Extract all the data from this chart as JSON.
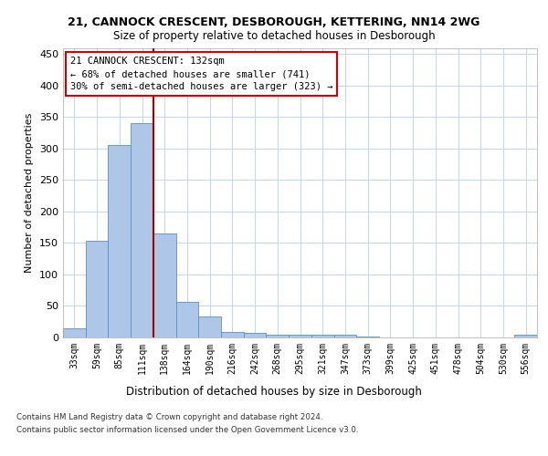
{
  "title1": "21, CANNOCK CRESCENT, DESBOROUGH, KETTERING, NN14 2WG",
  "title2": "Size of property relative to detached houses in Desborough",
  "xlabel": "Distribution of detached houses by size in Desborough",
  "ylabel": "Number of detached properties",
  "categories": [
    "33sqm",
    "59sqm",
    "85sqm",
    "111sqm",
    "138sqm",
    "164sqm",
    "190sqm",
    "216sqm",
    "242sqm",
    "268sqm",
    "295sqm",
    "321sqm",
    "347sqm",
    "373sqm",
    "399sqm",
    "425sqm",
    "451sqm",
    "478sqm",
    "504sqm",
    "530sqm",
    "556sqm"
  ],
  "values": [
    15,
    153,
    305,
    340,
    165,
    57,
    33,
    9,
    7,
    4,
    5,
    5,
    4,
    1,
    0,
    0,
    0,
    0,
    0,
    0,
    4
  ],
  "bar_color": "#aec6e8",
  "bar_edge_color": "#5a8fc2",
  "vline_x": 3.5,
  "vline_color": "#aa0000",
  "annotation_line1": "21 CANNOCK CRESCENT: 132sqm",
  "annotation_line2": "← 68% of detached houses are smaller (741)",
  "annotation_line3": "30% of semi-detached houses are larger (323) →",
  "annotation_box_color": "#ffffff",
  "annotation_box_edge_color": "#cc0000",
  "ylim": [
    0,
    460
  ],
  "yticks": [
    0,
    50,
    100,
    150,
    200,
    250,
    300,
    350,
    400,
    450
  ],
  "footer1": "Contains HM Land Registry data © Crown copyright and database right 2024.",
  "footer2": "Contains public sector information licensed under the Open Government Licence v3.0.",
  "bg_color": "#ffffff",
  "grid_color": "#c8d8e8"
}
